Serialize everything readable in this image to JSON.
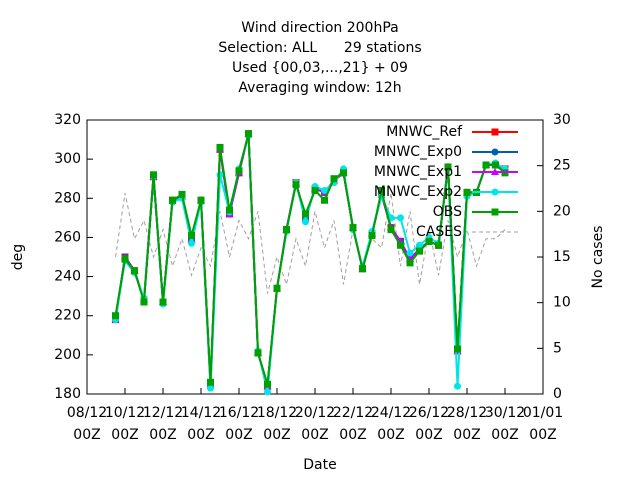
{
  "chart_data": {
    "type": "line",
    "title": "Wind direction 200hPa",
    "subtitle": [
      "Selection: ALL      29 stations",
      "Used {00,03,...,21} + 09",
      "Averaging window: 12h"
    ],
    "x_label": "Date",
    "y_label": "deg",
    "y2_label": "No cases",
    "xlim": [
      "08/12 00Z",
      "01/01 00Z"
    ],
    "xticks": [
      "08/12 00Z",
      "10/12 00Z",
      "12/12 00Z",
      "14/12 00Z",
      "16/12 00Z",
      "18/12 00Z",
      "20/12 00Z",
      "22/12 00Z",
      "24/12 00Z",
      "26/12 00Z",
      "28/12 00Z",
      "30/12 00Z",
      "01/01 00Z"
    ],
    "ylim": [
      180,
      320
    ],
    "yticks": [
      180,
      200,
      220,
      240,
      260,
      280,
      300,
      320
    ],
    "y2lim": [
      0,
      30
    ],
    "y2ticks": [
      0,
      5,
      10,
      15,
      20,
      25,
      30
    ],
    "grid": false,
    "legend": "top-right",
    "x": [
      "09/12 12Z",
      "10/12 00Z",
      "10/12 12Z",
      "11/12 00Z",
      "11/12 12Z",
      "12/12 00Z",
      "12/12 12Z",
      "13/12 00Z",
      "13/12 12Z",
      "14/12 00Z",
      "14/12 12Z",
      "15/12 00Z",
      "15/12 12Z",
      "16/12 00Z",
      "16/12 12Z",
      "17/12 00Z",
      "17/12 12Z",
      "18/12 00Z",
      "18/12 12Z",
      "19/12 00Z",
      "19/12 12Z",
      "20/12 00Z",
      "20/12 12Z",
      "21/12 00Z",
      "21/12 12Z",
      "22/12 00Z",
      "22/12 12Z",
      "23/12 00Z",
      "23/12 12Z",
      "24/12 00Z",
      "24/12 12Z",
      "25/12 00Z",
      "25/12 12Z",
      "26/12 00Z",
      "26/12 12Z",
      "27/12 00Z",
      "27/12 12Z",
      "28/12 00Z",
      "28/12 12Z",
      "29/12 00Z",
      "29/12 12Z",
      "30/12 00Z"
    ],
    "series": [
      {
        "name": "MNWC_Ref",
        "color": "#ff0000",
        "marker": "square",
        "values": [
          218,
          250,
          243,
          228,
          291,
          227,
          279,
          281,
          259,
          279,
          185,
          305,
          272,
          293,
          313,
          201,
          184,
          234,
          264,
          288,
          270,
          285,
          283,
          289,
          293,
          265,
          244,
          262,
          282,
          265,
          258,
          249,
          254,
          258,
          256,
          296,
          202,
          283,
          283,
          297,
          297,
          295
        ]
      },
      {
        "name": "MNWC_Exp0",
        "color": "#0060ad",
        "marker": "circle",
        "values": [
          218,
          250,
          243,
          228,
          291,
          227,
          279,
          281,
          259,
          279,
          185,
          305,
          272,
          293,
          313,
          201,
          184,
          234,
          264,
          288,
          270,
          285,
          283,
          289,
          293,
          265,
          244,
          262,
          282,
          265,
          258,
          249,
          254,
          258,
          256,
          296,
          202,
          283,
          283,
          297,
          297,
          295
        ]
      },
      {
        "name": "MNWC_Exp1",
        "color": "#cc00ff",
        "marker": "triangle",
        "values": [
          218,
          250,
          243,
          228,
          291,
          227,
          279,
          281,
          259,
          279,
          185,
          305,
          272,
          293,
          313,
          201,
          184,
          234,
          264,
          288,
          270,
          285,
          283,
          289,
          293,
          265,
          244,
          262,
          282,
          265,
          258,
          249,
          254,
          258,
          256,
          296,
          202,
          283,
          283,
          297,
          297,
          295
        ]
      },
      {
        "name": "MNWC_Exp2",
        "color": "#00e5e5",
        "marker": "circle",
        "values": [
          218,
          248,
          242,
          229,
          291,
          226,
          278,
          280,
          257,
          278,
          183,
          292,
          273,
          295,
          312,
          202,
          181,
          234,
          263,
          288,
          268,
          286,
          284,
          288,
          295,
          264,
          245,
          263,
          281,
          270,
          270,
          252,
          256,
          260,
          257,
          295,
          184,
          281,
          283,
          297,
          298,
          295
        ]
      },
      {
        "name": "OBS",
        "color": "#00a000",
        "marker": "square",
        "values": [
          220,
          249,
          243,
          227,
          292,
          227,
          279,
          282,
          261,
          279,
          186,
          306,
          274,
          294,
          313,
          201,
          185,
          234,
          264,
          287,
          272,
          284,
          279,
          290,
          293,
          265,
          244,
          261,
          284,
          264,
          256,
          247,
          253,
          258,
          256,
          296,
          203,
          283,
          283,
          297,
          297,
          293
        ]
      },
      {
        "name": "CASES",
        "color": "#a0a0a0",
        "axis": "y2",
        "dashed": true,
        "values": [
          15,
          22,
          17,
          19,
          15,
          18,
          14,
          17,
          13,
          16,
          14,
          20,
          15,
          19,
          17,
          20,
          11,
          15,
          12,
          17,
          14,
          20,
          16,
          19,
          12,
          18,
          14,
          17,
          16,
          22,
          14,
          20,
          12,
          18,
          13,
          19,
          15,
          18,
          14,
          17,
          17,
          18
        ]
      }
    ]
  }
}
